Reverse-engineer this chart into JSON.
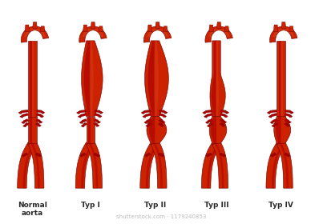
{
  "labels": [
    "Normal\naorta",
    "Typ I",
    "Typ II",
    "Typ III",
    "Typ IV"
  ],
  "background_color": "#ffffff",
  "dark_red": "#6B0000",
  "mid_red": "#AA0000",
  "bright_red": "#CC2200",
  "light_red": "#DD4422",
  "highlight": "#EE6644",
  "text_color": "#2a2a2a",
  "watermark": "shutterstock.com · 1179240853",
  "watermark_color": "#bbbbbb",
  "label_fontsize": 6.5,
  "watermark_fontsize": 5,
  "positions": [
    0.1,
    0.28,
    0.48,
    0.67,
    0.87
  ],
  "aneurysm_types": [
    0,
    1,
    2,
    3,
    4
  ],
  "fig_width": 4.03,
  "fig_height": 2.8
}
